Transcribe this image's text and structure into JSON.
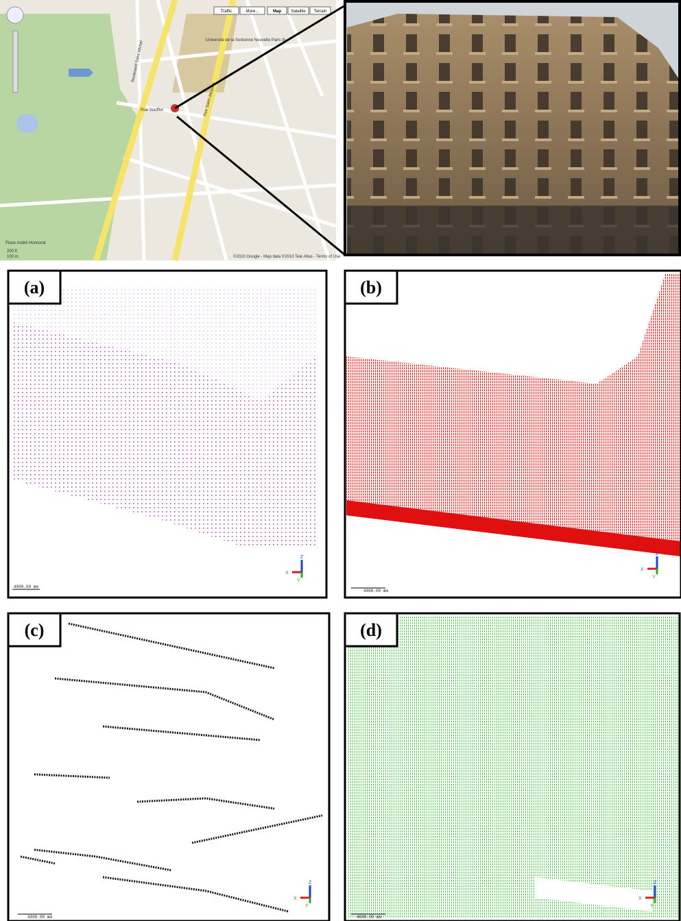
{
  "map": {
    "buttons": [
      "Traffic",
      "More...",
      "Map",
      "Satellite",
      "Terrain"
    ],
    "labels": [
      "Université de la Sorbonne Nouvelle Paris III",
      "Place André Honnorat",
      "Rue Soufflot",
      "Boulevard Saint-Michel",
      "Rue Saint-Jacques"
    ],
    "scale": [
      "200 ft",
      "100 m"
    ],
    "copyright": "©2010 Google - Map data ©2010 Tele Atlas - Terms of Use"
  },
  "panels": [
    {
      "label": "(a)",
      "scale": "4000.00 mm"
    },
    {
      "label": "(b)",
      "scale": "4000.00 mm"
    },
    {
      "label": "(c)",
      "scale": "4000.00 mm"
    },
    {
      "label": "(d)",
      "scale": "4000.00 mm"
    }
  ],
  "axes": {
    "z": "Z",
    "x": "X",
    "y": "Y"
  }
}
